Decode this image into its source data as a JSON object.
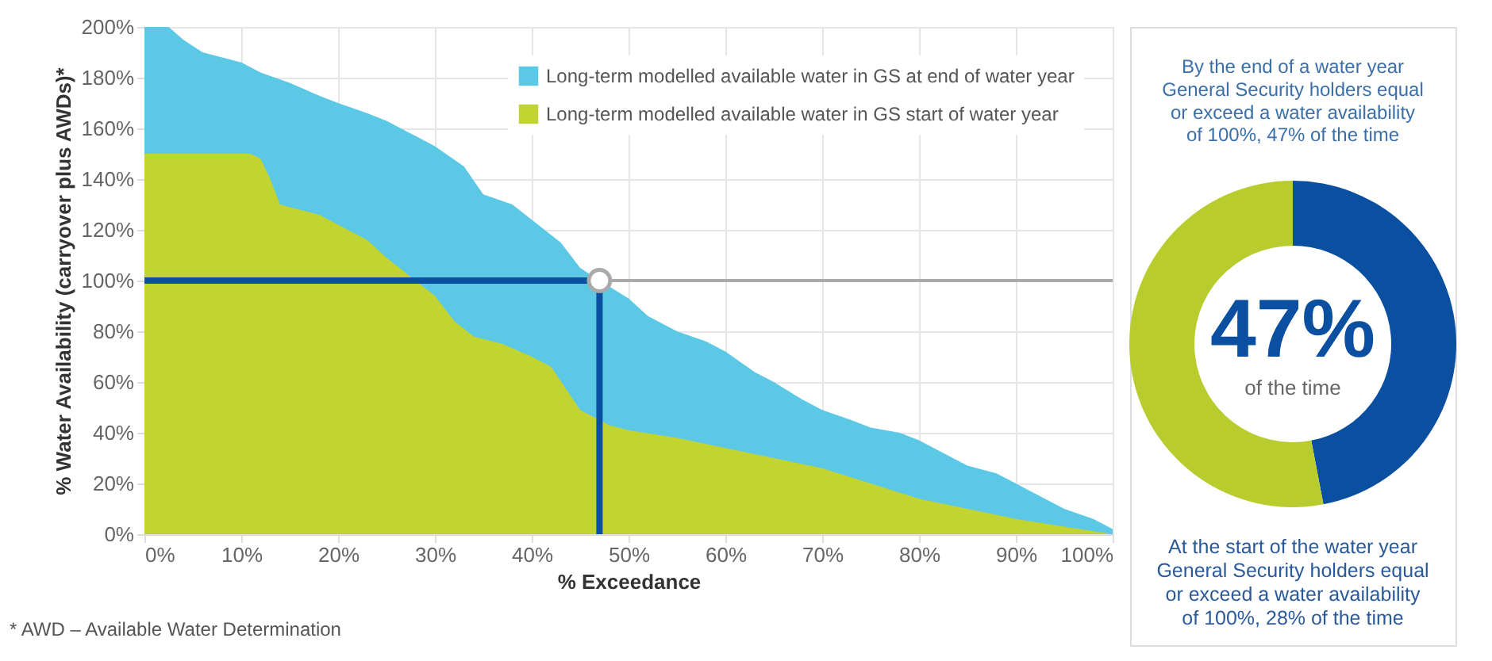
{
  "chart_data": [
    {
      "type": "area",
      "xlabel": "% Exceedance",
      "ylabel": "% Water Availability (carryover plus AWDs)*",
      "xlim": [
        0,
        100
      ],
      "ylim": [
        0,
        200
      ],
      "xticks": [
        {
          "value": 0,
          "label": "0%"
        },
        {
          "value": 10,
          "label": "10%"
        },
        {
          "value": 20,
          "label": "20%"
        },
        {
          "value": 30,
          "label": "30%"
        },
        {
          "value": 40,
          "label": "40%"
        },
        {
          "value": 50,
          "label": "50%"
        },
        {
          "value": 60,
          "label": "60%"
        },
        {
          "value": 70,
          "label": "70%"
        },
        {
          "value": 80,
          "label": "80%"
        },
        {
          "value": 90,
          "label": "90%"
        },
        {
          "value": 100,
          "label": "100%"
        }
      ],
      "yticks": [
        {
          "value": 0,
          "label": "0%"
        },
        {
          "value": 20,
          "label": "20%"
        },
        {
          "value": 40,
          "label": "40%"
        },
        {
          "value": 60,
          "label": "60%"
        },
        {
          "value": 80,
          "label": "80%"
        },
        {
          "value": 100,
          "label": "100%"
        },
        {
          "value": 120,
          "label": "120%"
        },
        {
          "value": 140,
          "label": "140%"
        },
        {
          "value": 160,
          "label": "160%"
        },
        {
          "value": 180,
          "label": "180%"
        },
        {
          "value": 200,
          "label": "200%"
        }
      ],
      "grid": true,
      "legend": "top right",
      "series": [
        {
          "type": "area",
          "name": "Long-term modelled available water in GS at end of water year",
          "color": "#5bc8e6",
          "x": [
            0,
            2.5,
            4,
            6,
            10,
            12,
            15,
            18,
            20,
            23,
            25,
            28,
            30,
            33,
            35,
            38,
            40,
            43,
            45,
            47,
            50,
            52,
            55,
            58,
            60,
            63,
            65,
            68,
            70,
            73,
            75,
            78,
            80,
            83,
            85,
            88,
            90,
            93,
            95,
            98,
            100
          ],
          "values": [
            200,
            200,
            195,
            190,
            186,
            182,
            178,
            173,
            170,
            166,
            163,
            157,
            153,
            145,
            134,
            130,
            124,
            115,
            105,
            100,
            93,
            86,
            80,
            76,
            72,
            64,
            60,
            53,
            49,
            45,
            42,
            40,
            37,
            31,
            27,
            24,
            20,
            14,
            10,
            6,
            2
          ]
        },
        {
          "type": "area",
          "name": "Long-term modelled available water in GS start of water year",
          "color": "#c2d431",
          "x": [
            0,
            11,
            12,
            13,
            14,
            15,
            18,
            20,
            23,
            25,
            28,
            30,
            32,
            34,
            37,
            40,
            42,
            45,
            47,
            48,
            50,
            55,
            60,
            65,
            70,
            75,
            80,
            85,
            90,
            95,
            100
          ],
          "values": [
            150,
            150,
            148,
            140,
            130,
            129,
            126,
            122,
            116,
            109,
            100,
            94,
            84,
            78,
            75,
            70,
            66,
            49,
            45,
            43,
            41,
            38,
            34,
            30,
            26,
            20,
            14,
            10,
            6,
            3,
            0
          ]
        },
        {
          "type": "scatter",
          "color": "#ffffff",
          "x": [
            47
          ],
          "values": [
            100
          ]
        }
      ],
      "ref_lines": [
        {
          "axis": "y",
          "value": 100,
          "color": "#0a4fa0"
        },
        {
          "axis": "x",
          "value": 47,
          "color": "#0a4fa0"
        }
      ],
      "annotations": [
        "* AWD – Available Water Determination"
      ]
    },
    {
      "type": "donut",
      "categories": [
        null,
        null
      ],
      "values": [
        47,
        53
      ],
      "colors": [
        "#0a4fa0",
        "#b9cc2e"
      ],
      "annotations": [
        "By the end of a water year General Security holders equal or exceed a water availability of 100%, 47% of the time",
        "47%",
        "of the time",
        "At the start of the water year General Security holders equal or exceed a water availability of 100%, 28% of the time"
      ]
    }
  ]
}
